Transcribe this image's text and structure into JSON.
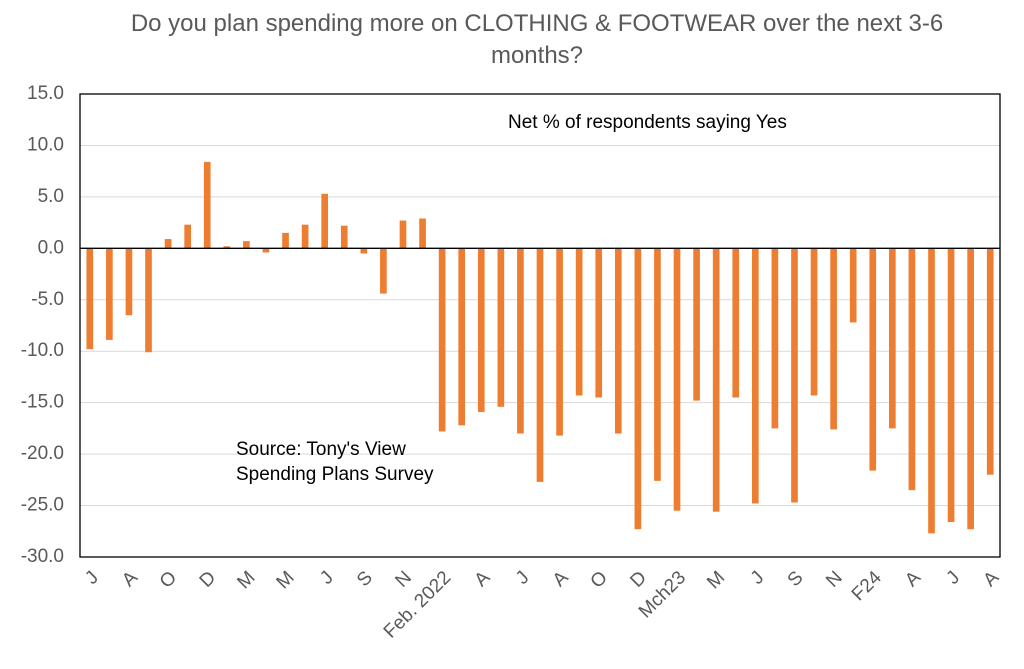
{
  "chart_data": {
    "type": "bar",
    "title": "Do you plan spending more on CLOTHING & FOOTWEAR over the next 3-6 months?",
    "annotations": [
      "Net % of respondents saying Yes",
      "Source: Tony's View Spending Plans Survey"
    ],
    "categories": [
      "J",
      null,
      "A",
      null,
      "O",
      null,
      "D",
      null,
      "M",
      null,
      "M",
      null,
      "J",
      null,
      "S",
      null,
      "N",
      null,
      "Feb. 2022",
      null,
      "A",
      null,
      "J",
      null,
      "A",
      null,
      "O",
      null,
      "D",
      null,
      "Mch23",
      null,
      "M",
      null,
      "J",
      null,
      "S",
      null,
      "N",
      null,
      "F24",
      null,
      "A",
      null,
      "J",
      null,
      "A"
    ],
    "values": [
      -9.8,
      -8.9,
      -6.5,
      -10.1,
      0.9,
      2.3,
      8.4,
      0.2,
      0.7,
      -0.4,
      1.5,
      2.3,
      5.3,
      2.2,
      -0.5,
      -4.4,
      2.7,
      2.9,
      -17.8,
      -17.2,
      -15.9,
      -15.4,
      -18.0,
      -22.7,
      -18.2,
      -14.3,
      -14.5,
      -18.0,
      -27.3,
      -22.6,
      -25.5,
      -14.8,
      -25.6,
      -14.5,
      -24.8,
      -17.5,
      -24.7,
      -14.3,
      -17.6,
      -7.2,
      -21.6,
      -17.5,
      -23.5,
      -27.7,
      -26.6,
      -27.3,
      -22.0
    ],
    "color": "#ed7d31",
    "ylim": [
      -30,
      15
    ],
    "yticks": [
      {
        "value": -30,
        "label": "-30.0"
      },
      {
        "value": -25,
        "label": "-25.0"
      },
      {
        "value": -20,
        "label": "-20.0"
      },
      {
        "value": -15,
        "label": "-15.0"
      },
      {
        "value": -10,
        "label": "-10.0"
      },
      {
        "value": -5,
        "label": "-5.0"
      },
      {
        "value": 0,
        "label": "0.0"
      },
      {
        "value": 5,
        "label": "5.0"
      },
      {
        "value": 10,
        "label": "10.0"
      },
      {
        "value": 15,
        "label": "15.0"
      }
    ],
    "grid": true
  }
}
